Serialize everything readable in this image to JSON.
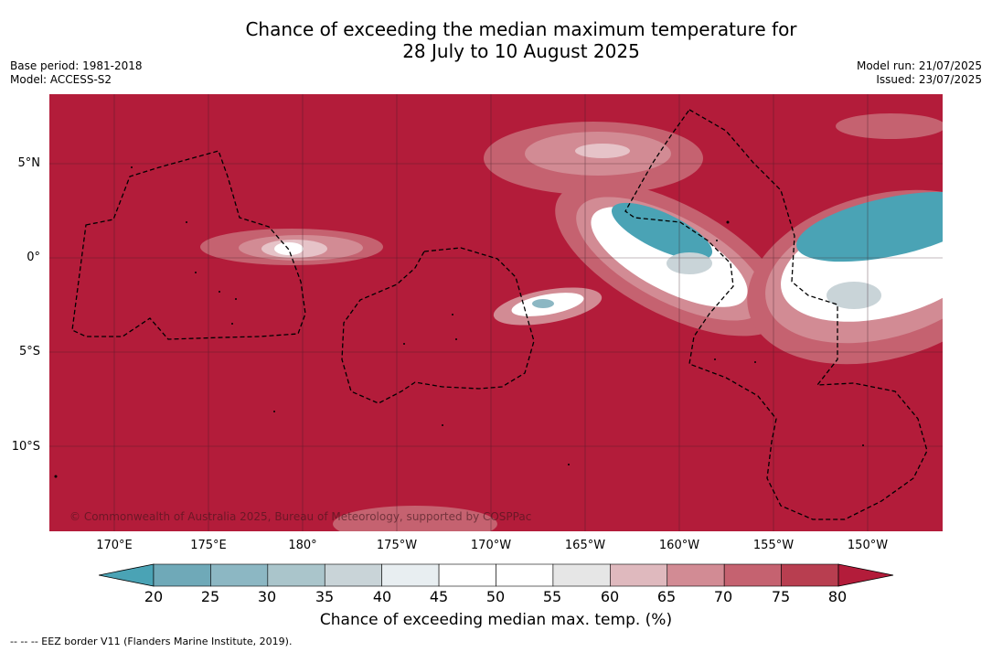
{
  "title_line1": "Chance of exceeding the median maximum temperature for",
  "title_line2": "28 July to 10 August 2025",
  "base_period": "Base period: 1981-2018",
  "model": "Model: ACCESS-S2",
  "model_run": "Model run: 21/07/2025",
  "issued": "Issued: 23/07/2025",
  "copyright": "© Commonwealth of Australia 2025, Bureau of Meteorology, supported by COSPPac",
  "footnote": "--  --  -- EEZ border V11 (Flanders Marine Institute, 2019).",
  "lat_ticks": [
    "5°N",
    "0°",
    "5°S",
    "10°S"
  ],
  "lon_ticks": [
    "170°E",
    "175°E",
    "180°",
    "175°W",
    "170°W",
    "165°W",
    "160°W",
    "155°W",
    "150°W"
  ],
  "colorbar": {
    "label": "Chance of exceeding median max. temp. (%)",
    "ticks": [
      "20",
      "25",
      "30",
      "35",
      "40",
      "45",
      "50",
      "55",
      "60",
      "65",
      "70",
      "75",
      "80"
    ],
    "colors": [
      "#6fa9b8",
      "#8cb7c3",
      "#aac5cb",
      "#c9d4d8",
      "#e8eef1",
      "#ffffff",
      "#ffffff",
      "#e6e6e6",
      "#dfb9be",
      "#d28b94",
      "#c56270",
      "#b83e50"
    ],
    "under_color": "#4aa3b5",
    "over_color": "#b31c3a"
  },
  "colors": {
    "background": "#b31c3a",
    "grid": "#3a1a22",
    "eez": "#000000"
  }
}
